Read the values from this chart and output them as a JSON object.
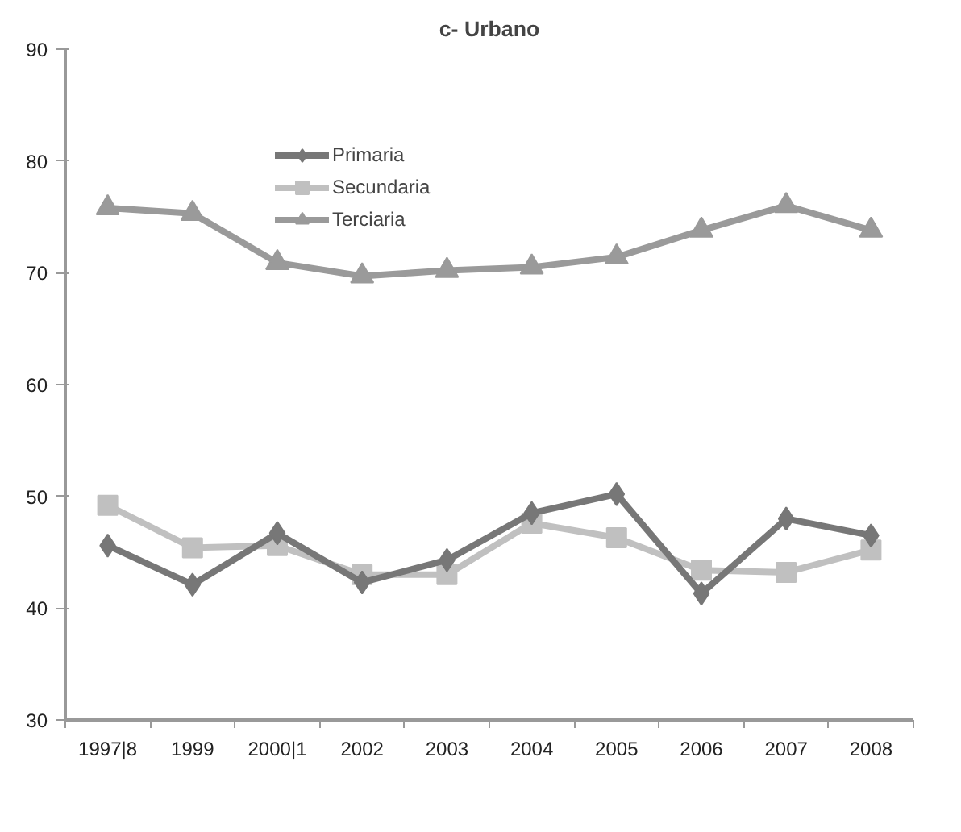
{
  "chart_data": {
    "type": "line",
    "title": "c- Urbano",
    "categories": [
      "1997|8",
      "1999",
      "2000|1",
      "2002",
      "2003",
      "2004",
      "2005",
      "2006",
      "2007",
      "2008"
    ],
    "series": [
      {
        "name": "Primaria",
        "color": "#777777",
        "marker": "diamond",
        "values": [
          45.6,
          42.1,
          46.7,
          42.3,
          44.3,
          48.5,
          50.2,
          41.3,
          48.0,
          46.5
        ]
      },
      {
        "name": "Secundaria",
        "color": "#c0c0c0",
        "marker": "square",
        "values": [
          49.2,
          45.4,
          45.6,
          43.0,
          43.0,
          47.6,
          46.3,
          43.4,
          43.2,
          45.2
        ]
      },
      {
        "name": "Terciaria",
        "color": "#9a9a9a",
        "marker": "triangle",
        "values": [
          75.8,
          75.3,
          70.9,
          69.7,
          70.2,
          70.5,
          71.4,
          73.8,
          76.0,
          73.8
        ]
      }
    ],
    "ylim": [
      30,
      90
    ],
    "yticks": [
      30,
      40,
      50,
      60,
      70,
      80,
      90
    ],
    "grid": false,
    "legend": "top left",
    "line_style": "solid"
  }
}
